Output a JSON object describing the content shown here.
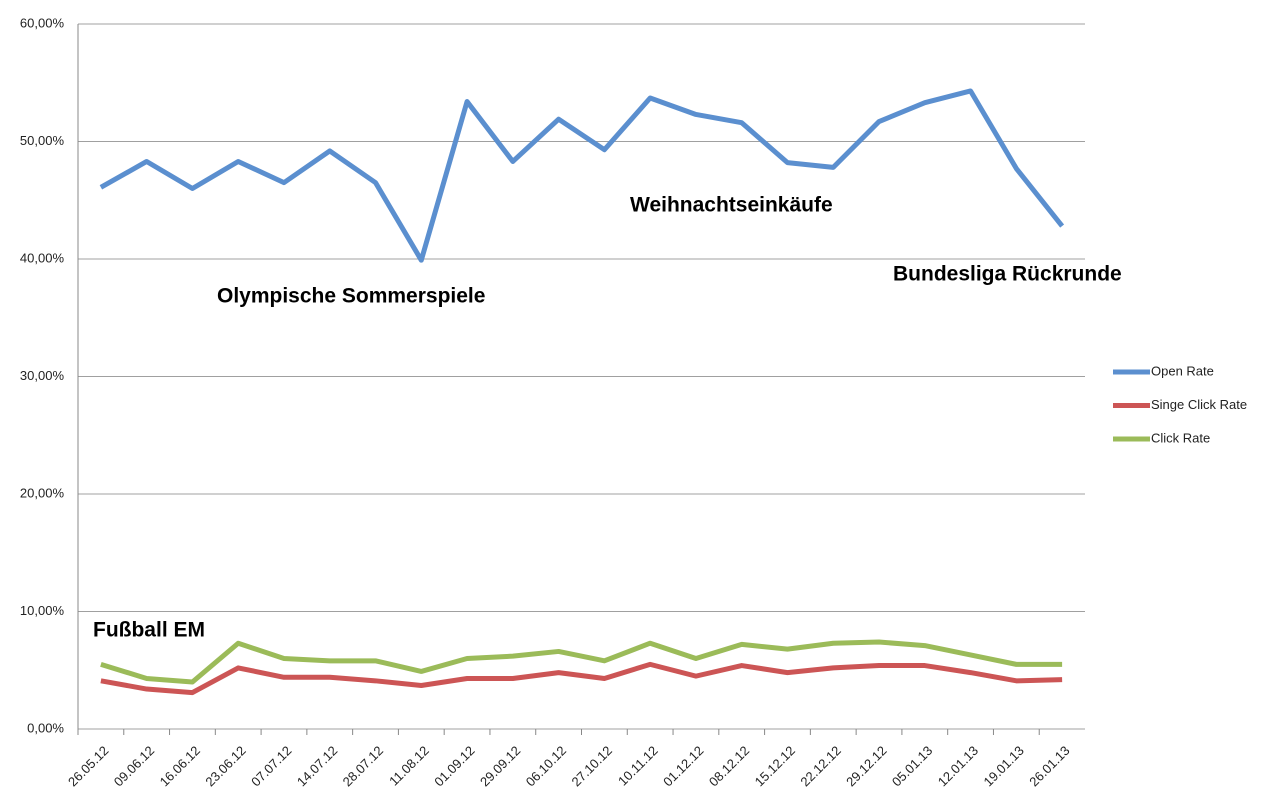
{
  "chart_data": {
    "type": "line",
    "categories": [
      "26.05.12",
      "09.06.12",
      "16.06.12",
      "23.06.12",
      "07.07.12",
      "14.07.12",
      "28.07.12",
      "11.08.12",
      "01.09.12",
      "29.09.12",
      "06.10.12",
      "27.10.12",
      "10.11.12",
      "01.12.12",
      "08.12.12",
      "15.12.12",
      "22.12.12",
      "29.12.12",
      "05.01.13",
      "12.01.13",
      "19.01.13",
      "26.01.13"
    ],
    "series": [
      {
        "name": "Open Rate",
        "color": "#5b8fcf",
        "values": [
          46.1,
          48.3,
          46.0,
          48.3,
          46.5,
          49.2,
          46.5,
          39.9,
          53.4,
          48.3,
          51.9,
          49.3,
          53.7,
          52.3,
          51.6,
          48.2,
          47.8,
          51.7,
          53.3,
          54.3,
          47.7,
          42.8
        ]
      },
      {
        "name": "Singe Click Rate",
        "color": "#cc5555",
        "values": [
          4.1,
          3.4,
          3.1,
          5.2,
          4.4,
          4.4,
          4.1,
          3.7,
          4.3,
          4.3,
          4.8,
          4.3,
          5.5,
          4.5,
          5.4,
          4.8,
          5.2,
          5.4,
          5.4,
          4.8,
          4.1,
          4.2
        ]
      },
      {
        "name": "Click Rate",
        "color": "#9bbb59",
        "values": [
          5.5,
          4.3,
          4.0,
          7.3,
          6.0,
          5.8,
          5.8,
          4.9,
          6.0,
          6.2,
          6.6,
          5.8,
          7.3,
          6.0,
          7.2,
          6.8,
          7.3,
          7.4,
          7.1,
          6.3,
          5.5,
          5.5
        ]
      }
    ],
    "ylim": [
      0,
      60
    ],
    "yticks": [
      {
        "value": 0,
        "label": "0,00%"
      },
      {
        "value": 10,
        "label": "10,00%"
      },
      {
        "value": 20,
        "label": "20,00%"
      },
      {
        "value": 30,
        "label": "30,00%"
      },
      {
        "value": 40,
        "label": "40,00%"
      },
      {
        "value": 50,
        "label": "50,00%"
      },
      {
        "value": 60,
        "label": "60,00%"
      }
    ],
    "grid": true,
    "legend": "right",
    "annotations": [
      "Olympische Sommerspiele",
      "Weihnachtseinkäufe",
      "Bundesliga Rückrunde",
      "Fußball EM"
    ]
  }
}
